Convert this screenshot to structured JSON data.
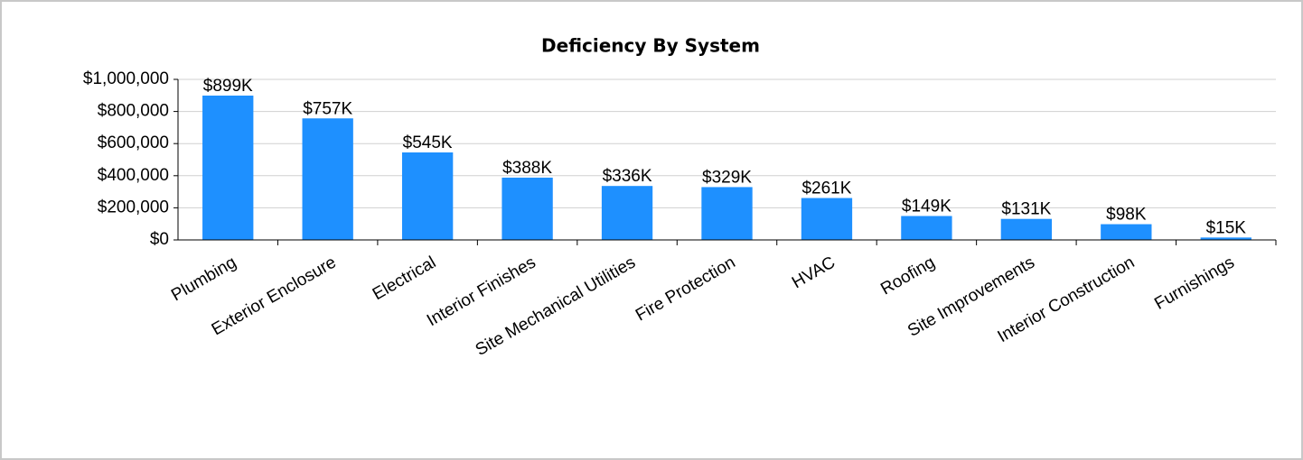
{
  "chart_data": {
    "type": "bar",
    "title": "Deficiency By System",
    "categories": [
      "Plumbing",
      "Exterior Enclosure",
      "Electrical",
      "Interior Finishes",
      "Site Mechanical Utilities",
      "Fire Protection",
      "HVAC",
      "Roofing",
      "Site Improvements",
      "Interior Construction",
      "Furnishings"
    ],
    "values": [
      899000,
      757000,
      545000,
      388000,
      336000,
      329000,
      261000,
      149000,
      131000,
      98000,
      15000
    ],
    "value_labels": [
      "$899K",
      "$757K",
      "$545K",
      "$388K",
      "$336K",
      "$329K",
      "$261K",
      "$149K",
      "$131K",
      "$98K",
      "$15K"
    ],
    "color": "#1e90ff",
    "ylim": [
      0,
      1000000
    ],
    "yticks": [
      {
        "value": 0,
        "label": "$0"
      },
      {
        "value": 200000,
        "label": "$200,000"
      },
      {
        "value": 400000,
        "label": "$400,000"
      },
      {
        "value": 600000,
        "label": "$600,000"
      },
      {
        "value": 800000,
        "label": "$800,000"
      },
      {
        "value": 1000000,
        "label": "$1,000,000"
      }
    ],
    "grid": true
  }
}
